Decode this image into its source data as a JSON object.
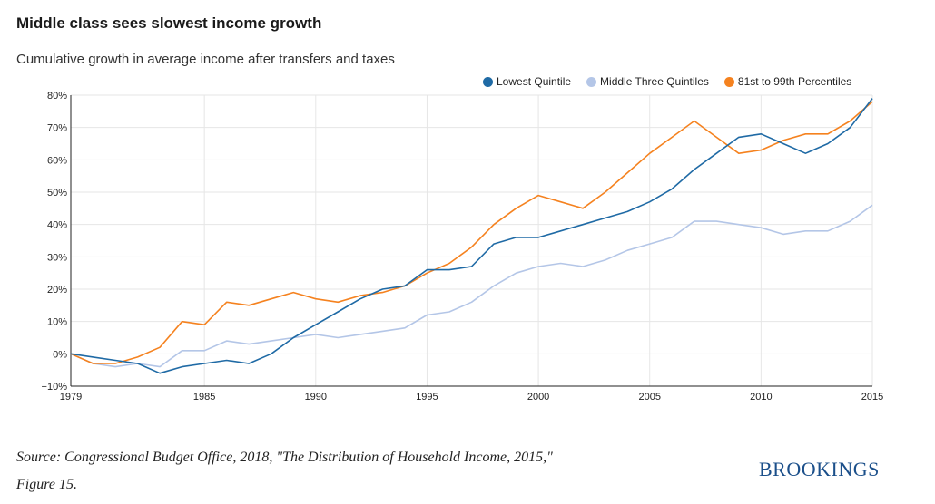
{
  "title": "Middle class sees slowest income growth",
  "subtitle": "Cumulative growth in average income after transfers and taxes",
  "source": "Source: Congressional Budget Office, 2018, \"The Distribution of Household Income, 2015,\" Figure 15.",
  "brand": "BROOKINGS",
  "chart_data": {
    "type": "line",
    "title": "Middle class sees slowest income growth",
    "subtitle": "Cumulative growth in average income after transfers and taxes",
    "xlabel": "",
    "ylabel": "",
    "xlim": [
      1979,
      2015
    ],
    "ylim": [
      -10,
      80
    ],
    "x_ticks": [
      1979,
      1985,
      1990,
      1995,
      2000,
      2005,
      2010,
      2015
    ],
    "y_ticks": [
      -10,
      0,
      10,
      20,
      30,
      40,
      50,
      60,
      70,
      80
    ],
    "y_tick_labels": [
      "−10%",
      "0%",
      "10%",
      "20%",
      "30%",
      "40%",
      "50%",
      "60%",
      "70%",
      "80%"
    ],
    "grid": true,
    "legend_position": "top-right",
    "x": [
      1979,
      1980,
      1981,
      1982,
      1983,
      1984,
      1985,
      1986,
      1987,
      1988,
      1989,
      1990,
      1991,
      1992,
      1993,
      1994,
      1995,
      1996,
      1997,
      1998,
      1999,
      2000,
      2001,
      2002,
      2003,
      2004,
      2005,
      2006,
      2007,
      2008,
      2009,
      2010,
      2011,
      2012,
      2013,
      2014,
      2015
    ],
    "series": [
      {
        "name": "Lowest Quintile",
        "color": "#1f6aa5",
        "values": [
          0,
          -1,
          -2,
          -3,
          -6,
          -4,
          -3,
          -2,
          -3,
          0,
          5,
          9,
          13,
          17,
          20,
          21,
          26,
          26,
          27,
          34,
          36,
          36,
          38,
          40,
          42,
          44,
          47,
          51,
          57,
          62,
          67,
          68,
          65,
          62,
          65,
          70,
          79
        ]
      },
      {
        "name": "Middle Three Quintiles",
        "color": "#b4c6e7",
        "values": [
          0,
          -3,
          -4,
          -3,
          -4,
          1,
          1,
          4,
          3,
          4,
          5,
          6,
          5,
          6,
          7,
          8,
          12,
          13,
          16,
          21,
          25,
          27,
          28,
          27,
          29,
          32,
          34,
          36,
          41,
          41,
          40,
          39,
          37,
          38,
          38,
          41,
          46
        ]
      },
      {
        "name": "81st to 99th Percentiles",
        "color": "#f5821f",
        "values": [
          0,
          -3,
          -3,
          -1,
          2,
          10,
          9,
          16,
          15,
          17,
          19,
          17,
          16,
          18,
          19,
          21,
          25,
          28,
          33,
          40,
          45,
          49,
          47,
          45,
          50,
          56,
          62,
          67,
          72,
          67,
          62,
          63,
          66,
          68,
          68,
          72,
          78
        ]
      }
    ]
  }
}
